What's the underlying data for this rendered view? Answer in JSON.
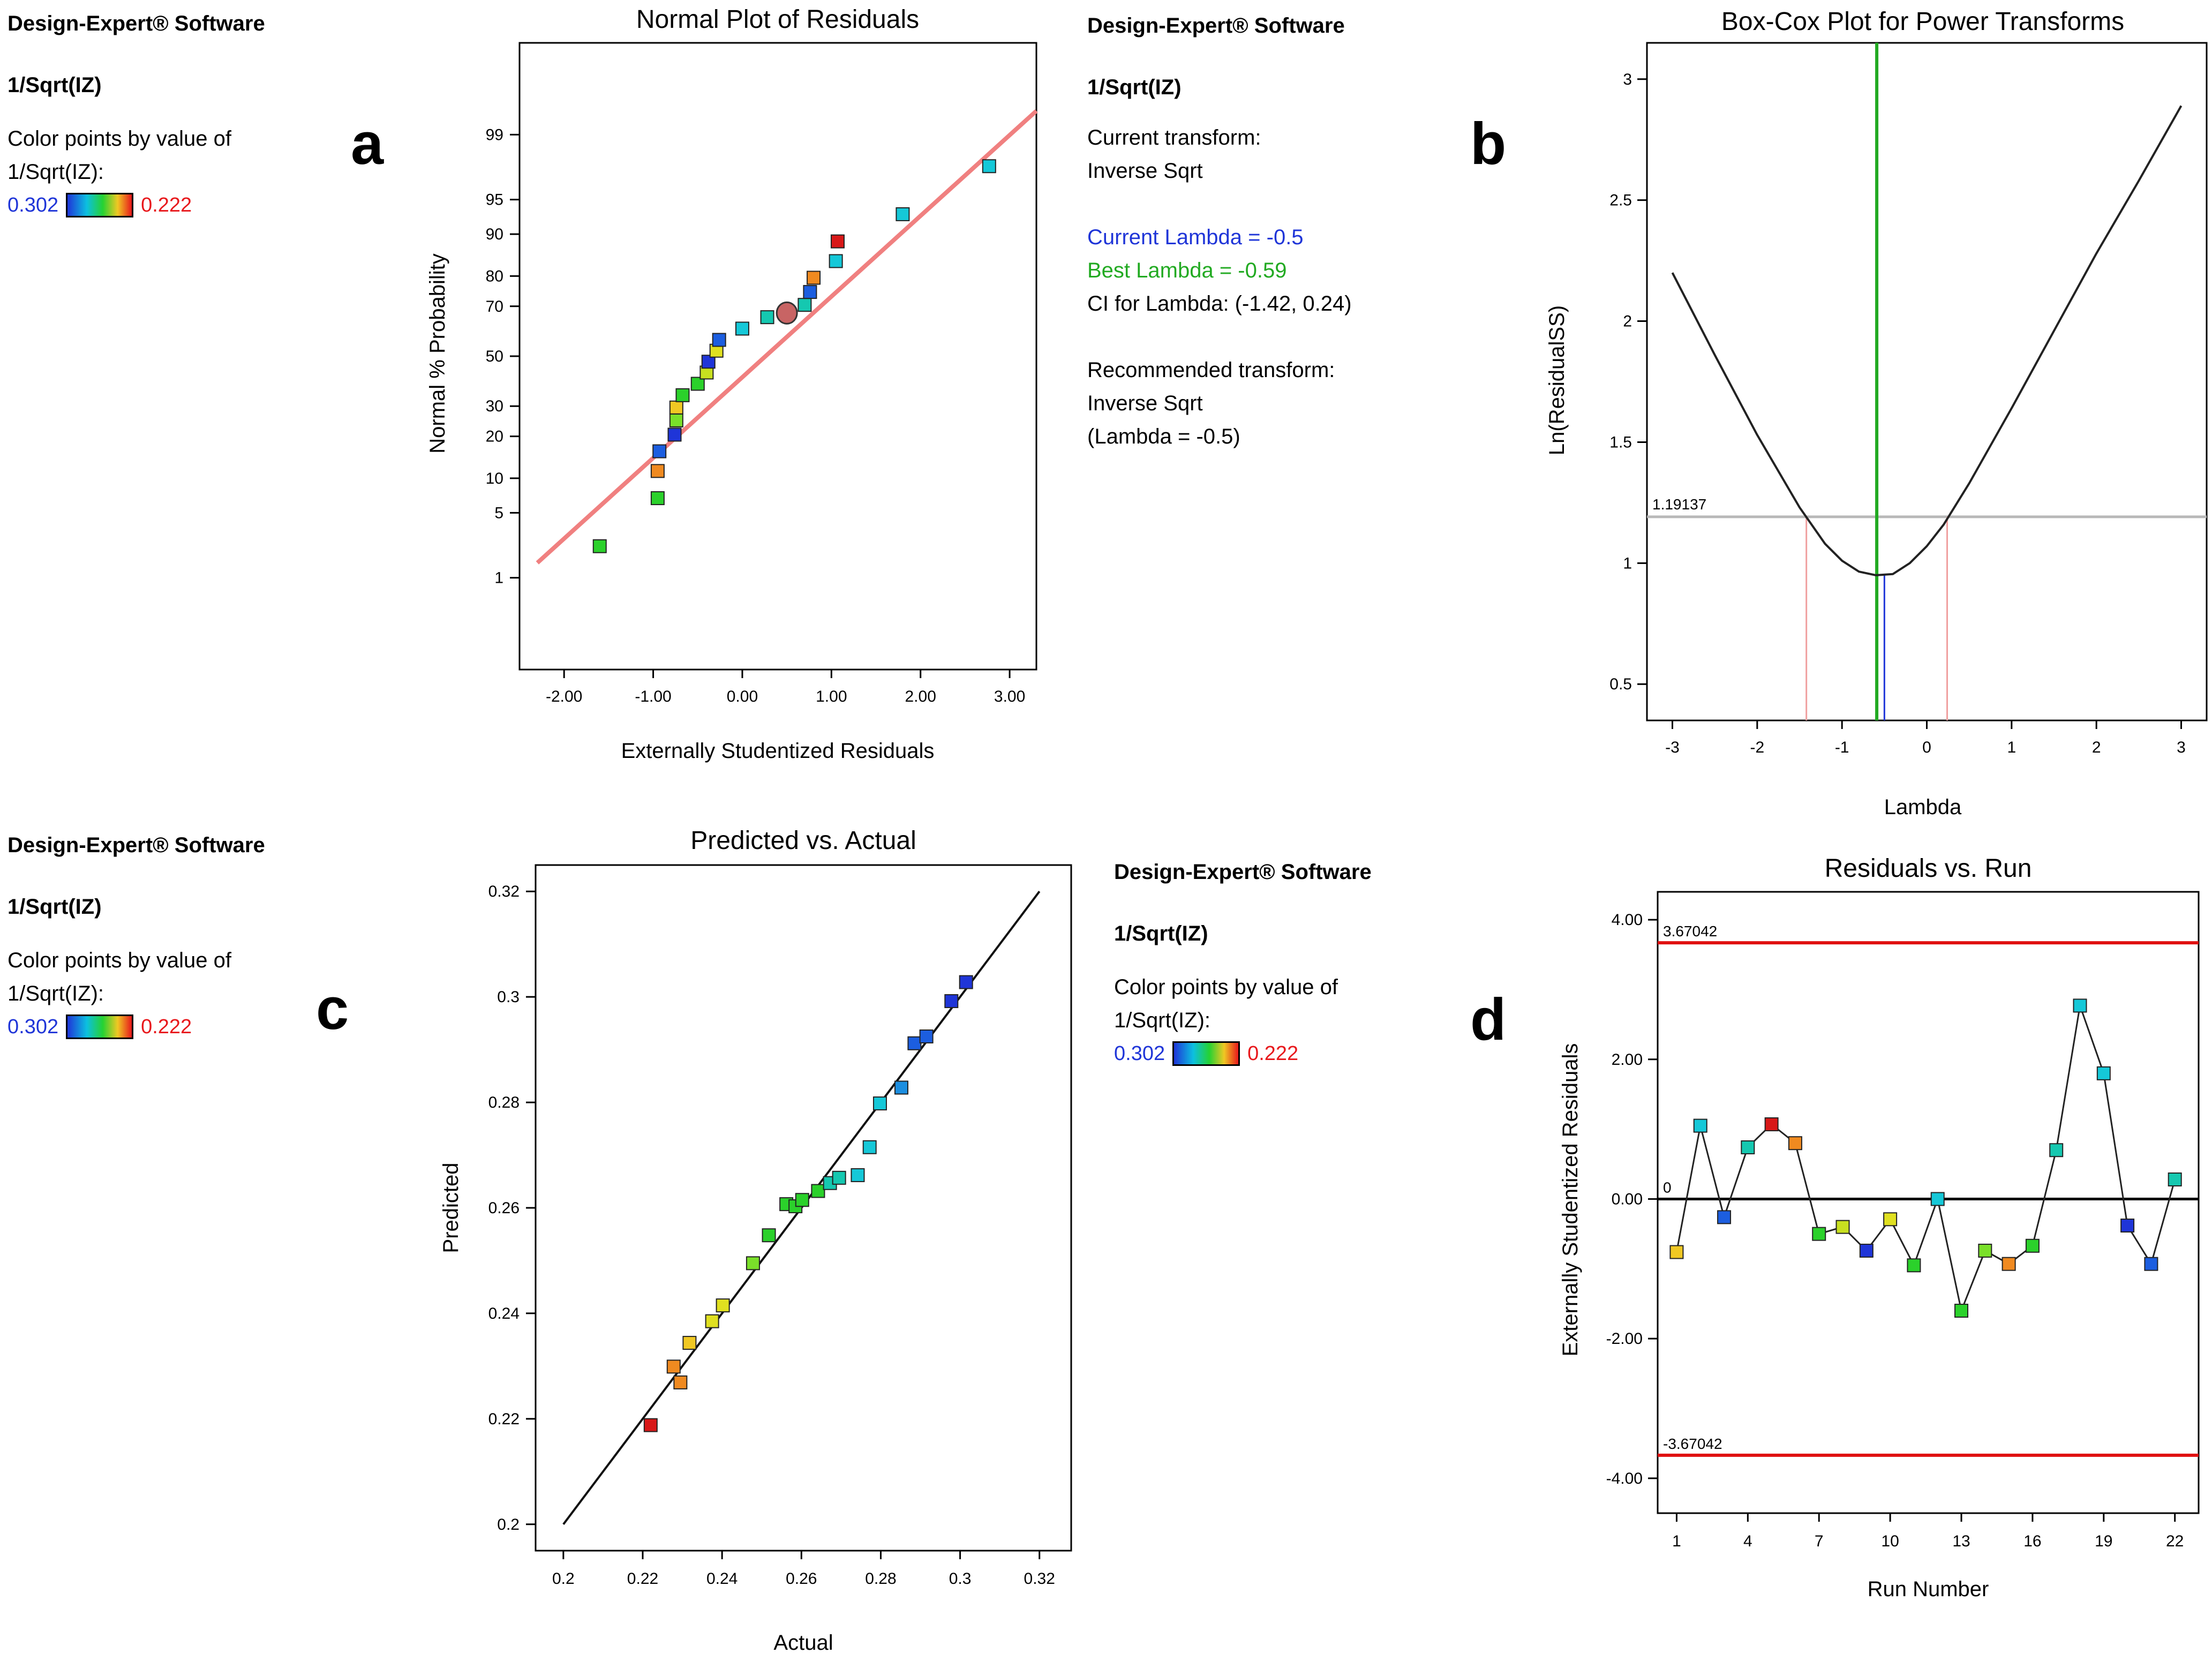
{
  "panels": {
    "a": {
      "letter": "a",
      "info": {
        "software": "Design-Expert® Software",
        "response": "1/Sqrt(IZ)",
        "color_by_1": "Color points by value of",
        "color_by_2": "1/Sqrt(IZ):",
        "legend_low": "0.302",
        "legend_high": "0.222"
      }
    },
    "b": {
      "letter": "b",
      "info": {
        "software": "Design-Expert® Software",
        "response": "1/Sqrt(IZ)",
        "current_transform_label": "Current transform:",
        "current_transform_value": "Inverse Sqrt",
        "current_lambda": "Current Lambda = -0.5",
        "best_lambda": "Best Lambda = -0.59",
        "ci_lambda": "CI for Lambda: (-1.42, 0.24)",
        "recommended_label": "Recommended transform:",
        "recommended_value": "Inverse Sqrt",
        "recommended_lambda": "(Lambda = -0.5)"
      }
    },
    "c": {
      "letter": "c",
      "info": {
        "software": "Design-Expert® Software",
        "response": "1/Sqrt(IZ)",
        "color_by_1": "Color points by value of",
        "color_by_2": "1/Sqrt(IZ):",
        "legend_low": "0.302",
        "legend_high": "0.222"
      }
    },
    "d": {
      "letter": "d",
      "info": {
        "software": "Design-Expert® Software",
        "response": "1/Sqrt(IZ)",
        "color_by_1": "Color points by value of",
        "color_by_2": "1/Sqrt(IZ):",
        "legend_low": "0.302",
        "legend_high": "0.222"
      }
    }
  },
  "colors": {
    "low_blue": "#1f35d8",
    "high_red": "#e8181c",
    "current_lambda": "#1f35d8",
    "best_lambda": "#22aa22",
    "ref_line_a": "#f08080",
    "limit_red": "#e01010"
  },
  "chart_data": [
    {
      "id": "normal",
      "type": "scatter",
      "title": "Normal Plot of Residuals",
      "xlabel": "Externally Studentized Residuals",
      "ylabel": "Normal % Probability",
      "xlim": [
        -2.5,
        3.3
      ],
      "x_ticks": [
        "-2.00",
        "-1.00",
        "0.00",
        "1.00",
        "2.00",
        "3.00"
      ],
      "x_tick_values": [
        -2,
        -1,
        0,
        1,
        2,
        3
      ],
      "y_ticks": [
        "1",
        "5",
        "10",
        "20",
        "30",
        "50",
        "70",
        "80",
        "90",
        "95",
        "99"
      ],
      "y_tick_values": [
        1,
        5,
        10,
        20,
        30,
        50,
        70,
        80,
        90,
        95,
        99
      ],
      "ref_line": [
        [
          -2.3,
          1.5
        ],
        [
          3.3,
          99.5
        ]
      ],
      "points": [
        {
          "x": -1.6,
          "y": 2.3,
          "c": "#2bd12b"
        },
        {
          "x": -0.95,
          "y": 6.8,
          "c": "#2bd12b"
        },
        {
          "x": -0.95,
          "y": 11.4,
          "c": "#f08a20"
        },
        {
          "x": -0.93,
          "y": 15.9,
          "c": "#1c5ee0"
        },
        {
          "x": -0.76,
          "y": 20.5,
          "c": "#1f35d8"
        },
        {
          "x": -0.74,
          "y": 25.0,
          "c": "#7ae02a"
        },
        {
          "x": -0.74,
          "y": 29.5,
          "c": "#f0c823"
        },
        {
          "x": -0.67,
          "y": 34.1,
          "c": "#2bd12b"
        },
        {
          "x": -0.5,
          "y": 38.6,
          "c": "#2bd12b"
        },
        {
          "x": -0.4,
          "y": 43.2,
          "c": "#c8e020"
        },
        {
          "x": -0.38,
          "y": 47.7,
          "c": "#1f35d8"
        },
        {
          "x": -0.29,
          "y": 52.3,
          "c": "#e0e020"
        },
        {
          "x": -0.26,
          "y": 56.8,
          "c": "#1c5ee0"
        },
        {
          "x": 0.0,
          "y": 61.4,
          "c": "#15c8d8"
        },
        {
          "x": 0.28,
          "y": 65.9,
          "c": "#15c8b0"
        },
        {
          "x": 0.7,
          "y": 70.5,
          "c": "#15c8b0"
        },
        {
          "x": 0.76,
          "y": 75.0,
          "c": "#1c5ee0"
        },
        {
          "x": 0.8,
          "y": 79.5,
          "c": "#f08a20"
        },
        {
          "x": 1.05,
          "y": 84.1,
          "c": "#15c8d8"
        },
        {
          "x": 1.07,
          "y": 88.6,
          "c": "#d81818"
        },
        {
          "x": 1.8,
          "y": 93.2,
          "c": "#15c8d8"
        },
        {
          "x": 2.77,
          "y": 97.7,
          "c": "#15c8d8"
        }
      ],
      "highlight": {
        "x": 0.5,
        "y": 67.5,
        "c": "#c86464"
      }
    },
    {
      "id": "boxcox",
      "type": "line",
      "title": "Box-Cox Plot for Power Transforms",
      "xlabel": "Lambda",
      "ylabel": "Ln(ResidualSS)",
      "xlim": [
        -3.3,
        3.3
      ],
      "ylim": [
        0.35,
        3.15
      ],
      "x_ticks": [
        "-3",
        "-2",
        "-1",
        "0",
        "1",
        "2",
        "3"
      ],
      "x_tick_values": [
        -3,
        -2,
        -1,
        0,
        1,
        2,
        3
      ],
      "y_ticks": [
        "0.5",
        "1",
        "1.5",
        "2",
        "2.5",
        "3"
      ],
      "y_tick_values": [
        0.5,
        1,
        1.5,
        2,
        2.5,
        3
      ],
      "curve_x": [
        -3,
        -2.5,
        -2,
        -1.5,
        -1.2,
        -1,
        -0.8,
        -0.6,
        -0.4,
        -0.2,
        0,
        0.2,
        0.5,
        1,
        1.5,
        2,
        2.5,
        3
      ],
      "curve_y": [
        2.2,
        1.86,
        1.53,
        1.23,
        1.08,
        1.01,
        0.965,
        0.95,
        0.955,
        1.0,
        1.07,
        1.16,
        1.33,
        1.64,
        1.96,
        2.28,
        2.58,
        2.89
      ],
      "ci_threshold": 1.19137,
      "ci_label": "1.19137",
      "ci_low": -1.42,
      "ci_high": 0.24,
      "best_lambda": -0.59,
      "current_lambda": -0.5
    },
    {
      "id": "predactual",
      "type": "scatter",
      "title": "Predicted vs. Actual",
      "xlabel": "Actual",
      "ylabel": "Predicted",
      "xlim": [
        0.193,
        0.328
      ],
      "ylim": [
        0.195,
        0.325
      ],
      "x_ticks": [
        "0.2",
        "0.22",
        "0.24",
        "0.26",
        "0.28",
        "0.3",
        "0.32"
      ],
      "x_tick_values": [
        0.2,
        0.22,
        0.24,
        0.26,
        0.28,
        0.3,
        0.32
      ],
      "y_ticks": [
        "0.2",
        "0.22",
        "0.24",
        "0.26",
        "0.28",
        "0.3",
        "0.32"
      ],
      "y_tick_values": [
        0.2,
        0.22,
        0.24,
        0.26,
        0.28,
        0.3,
        0.32
      ],
      "line": [
        [
          0.2,
          0.2
        ],
        [
          0.32,
          0.32
        ]
      ],
      "points": [
        {
          "x": 0.222,
          "y": 0.2188,
          "c": "#d81818"
        },
        {
          "x": 0.2278,
          "y": 0.2299,
          "c": "#f08a20"
        },
        {
          "x": 0.2295,
          "y": 0.2269,
          "c": "#f08a20"
        },
        {
          "x": 0.2318,
          "y": 0.2344,
          "c": "#f0c823"
        },
        {
          "x": 0.2375,
          "y": 0.2385,
          "c": "#e0e020"
        },
        {
          "x": 0.2402,
          "y": 0.2415,
          "c": "#e0e020"
        },
        {
          "x": 0.2478,
          "y": 0.2495,
          "c": "#7ae02a"
        },
        {
          "x": 0.2518,
          "y": 0.2548,
          "c": "#2bd12b"
        },
        {
          "x": 0.2562,
          "y": 0.2607,
          "c": "#2bd12b"
        },
        {
          "x": 0.2585,
          "y": 0.2603,
          "c": "#2bd12b"
        },
        {
          "x": 0.2602,
          "y": 0.2615,
          "c": "#2bd12b"
        },
        {
          "x": 0.2642,
          "y": 0.2632,
          "c": "#2bd12b"
        },
        {
          "x": 0.2672,
          "y": 0.2647,
          "c": "#15c8b0"
        },
        {
          "x": 0.2695,
          "y": 0.2657,
          "c": "#15c8b0"
        },
        {
          "x": 0.2742,
          "y": 0.2662,
          "c": "#15c8d8"
        },
        {
          "x": 0.2772,
          "y": 0.2715,
          "c": "#15c8d8"
        },
        {
          "x": 0.2798,
          "y": 0.2798,
          "c": "#15c8d8"
        },
        {
          "x": 0.2852,
          "y": 0.2828,
          "c": "#1c8ee0"
        },
        {
          "x": 0.2885,
          "y": 0.2912,
          "c": "#1c5ee0"
        },
        {
          "x": 0.2915,
          "y": 0.2925,
          "c": "#1c5ee0"
        },
        {
          "x": 0.2978,
          "y": 0.2992,
          "c": "#1f35d8"
        },
        {
          "x": 0.3015,
          "y": 0.3028,
          "c": "#1f35d8"
        }
      ]
    },
    {
      "id": "residrun",
      "type": "line",
      "title": "Residuals vs. Run",
      "xlabel": "Run Number",
      "ylabel": "Externally Studentized Residuals",
      "xlim": [
        0.2,
        23
      ],
      "ylim": [
        -4.5,
        4.4
      ],
      "x_ticks": [
        "1",
        "4",
        "7",
        "10",
        "13",
        "16",
        "19",
        "22"
      ],
      "x_tick_values": [
        1,
        4,
        7,
        10,
        13,
        16,
        19,
        22
      ],
      "y_ticks": [
        "-4.00",
        "-2.00",
        "0.00",
        "2.00",
        "4.00"
      ],
      "y_tick_values": [
        -4,
        -2,
        0,
        2,
        4
      ],
      "upper_limit": 3.67042,
      "lower_limit": -3.67042,
      "upper_label": "3.67042",
      "lower_label": "-3.67042",
      "zero_label": "0",
      "runs": [
        1,
        2,
        3,
        4,
        5,
        6,
        7,
        8,
        9,
        10,
        11,
        12,
        13,
        14,
        15,
        16,
        17,
        18,
        19,
        20,
        21,
        22
      ],
      "values": [
        -0.76,
        1.05,
        -0.26,
        0.74,
        1.07,
        0.8,
        -0.5,
        -0.4,
        -0.74,
        -0.29,
        -0.95,
        0.0,
        -1.6,
        -0.74,
        -0.93,
        -0.67,
        0.7,
        2.77,
        1.8,
        -0.38,
        -0.93,
        0.28
      ],
      "colors": [
        "#f0c823",
        "#15c8d8",
        "#1c5ee0",
        "#15c8b0",
        "#d81818",
        "#f08a20",
        "#2bd12b",
        "#c8e020",
        "#1f35d8",
        "#e0e020",
        "#2bd12b",
        "#15c8d8",
        "#2bd12b",
        "#7ae02a",
        "#f08a20",
        "#2bd12b",
        "#15c8b0",
        "#15c8d8",
        "#15c8d8",
        "#1f35d8",
        "#1c5ee0",
        "#15c8b0"
      ]
    }
  ]
}
